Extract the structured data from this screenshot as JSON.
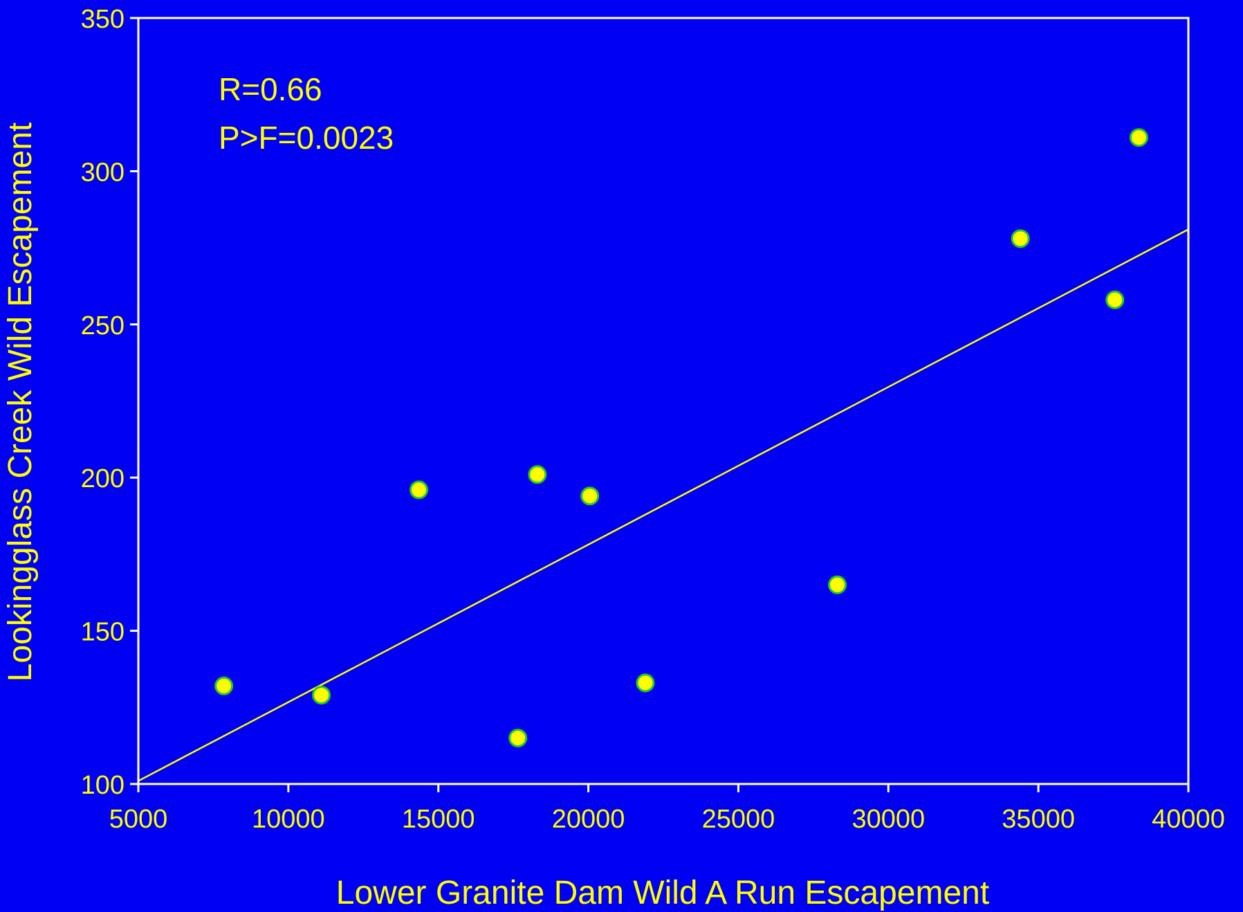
{
  "colors": {
    "background": "#0000F2",
    "axis": "#FFFFFF",
    "text": "#FFFF00",
    "point_fill": "#FFFF00",
    "point_stroke": "#22CC22",
    "fit_line": "#FFFF00"
  },
  "chart_data": {
    "type": "scatter",
    "xlabel": "Lower Granite Dam Wild A Run Escapement",
    "ylabel": "Lookingglass Creek Wild Escapement",
    "xlim": [
      5000,
      40000
    ],
    "ylim": [
      100,
      350
    ],
    "xticks": [
      5000,
      10000,
      15000,
      20000,
      25000,
      30000,
      35000,
      40000
    ],
    "yticks": [
      100,
      150,
      200,
      250,
      300,
      350
    ],
    "grid": false,
    "annotations": [
      "R=0.66",
      "P>F=0.0023"
    ],
    "points": [
      {
        "x": 7850,
        "y": 132
      },
      {
        "x": 11100,
        "y": 129
      },
      {
        "x": 14350,
        "y": 196
      },
      {
        "x": 17650,
        "y": 115
      },
      {
        "x": 18300,
        "y": 201
      },
      {
        "x": 20050,
        "y": 194
      },
      {
        "x": 21900,
        "y": 133
      },
      {
        "x": 28300,
        "y": 165
      },
      {
        "x": 34400,
        "y": 278
      },
      {
        "x": 37550,
        "y": 258
      },
      {
        "x": 38350,
        "y": 311
      }
    ],
    "fit_line": {
      "x": [
        5000,
        40000
      ],
      "y": [
        101,
        281
      ]
    }
  }
}
